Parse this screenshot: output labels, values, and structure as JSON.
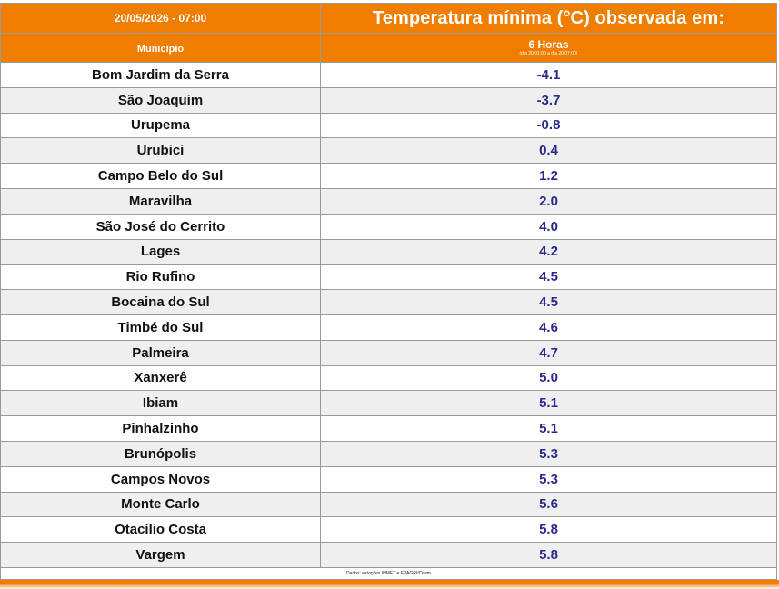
{
  "header": {
    "datetime": "20/05/2026 - 07:00",
    "title": "Temperatura mínima (°C) observada em:"
  },
  "columns": {
    "municipio": "Município",
    "period": "6 Horas",
    "period_range": "(dia 20 01:00 a dia 20 07:00)"
  },
  "rows": [
    {
      "city": "Bom Jardim da Serra",
      "value": "-4.1"
    },
    {
      "city": "São Joaquim",
      "value": "-3.7"
    },
    {
      "city": "Urupema",
      "value": "-0.8"
    },
    {
      "city": "Urubici",
      "value": "0.4"
    },
    {
      "city": "Campo Belo do Sul",
      "value": "1.2"
    },
    {
      "city": "Maravilha",
      "value": "2.0"
    },
    {
      "city": "São José do Cerrito",
      "value": "4.0"
    },
    {
      "city": "Lages",
      "value": "4.2"
    },
    {
      "city": "Rio Rufino",
      "value": "4.5"
    },
    {
      "city": "Bocaina do Sul",
      "value": "4.5"
    },
    {
      "city": "Timbé do Sul",
      "value": "4.6"
    },
    {
      "city": "Palmeira",
      "value": "4.7"
    },
    {
      "city": "Xanxerê",
      "value": "5.0"
    },
    {
      "city": "Ibiam",
      "value": "5.1"
    },
    {
      "city": "Pinhalzinho",
      "value": "5.1"
    },
    {
      "city": "Brunópolis",
      "value": "5.3"
    },
    {
      "city": "Campos Novos",
      "value": "5.3"
    },
    {
      "city": "Monte Carlo",
      "value": "5.6"
    },
    {
      "city": "Otacílio Costa",
      "value": "5.8"
    },
    {
      "city": "Vargem",
      "value": "5.8"
    }
  ],
  "footer": {
    "source": "Dados: estações INMET e EPAGRI/Ciram"
  },
  "colors": {
    "accent": "#ef7d00",
    "value_text": "#2b2a8c"
  }
}
